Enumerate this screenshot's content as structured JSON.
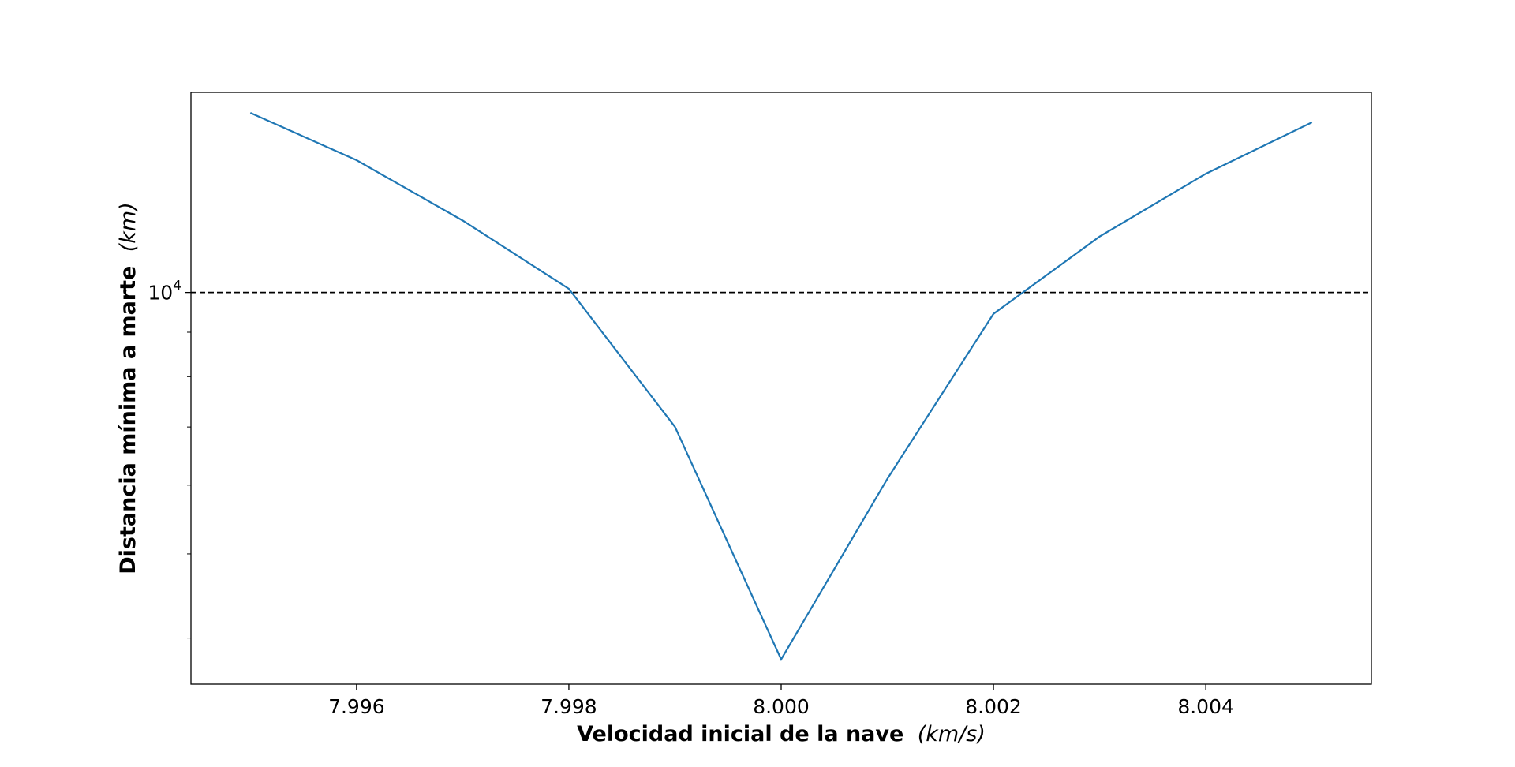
{
  "chart_data": {
    "type": "line",
    "title": "",
    "xlabel": "Velocidad inicial de la nave",
    "xlabel_unit": "(km/s)",
    "ylabel": "Distancia mínima a marte",
    "ylabel_unit": "(km)",
    "xlim": [
      7.99444,
      8.00556
    ],
    "ylim": [
      3540,
      17000
    ],
    "yscale": "log",
    "grid": false,
    "legend": "none",
    "x_ticks": [
      7.996,
      7.998,
      8.0,
      8.002,
      8.004
    ],
    "x_tick_labels": [
      "7.996",
      "7.998",
      "8.000",
      "8.002",
      "8.004"
    ],
    "y_ticks_major": [
      10000
    ],
    "y_tick_labels": [
      {
        "base": "10",
        "exp": "4"
      }
    ],
    "y_ticks_minor": [
      4000,
      5000,
      6000,
      7000,
      8000,
      9000,
      20000
    ],
    "series": [
      {
        "color": "#1f77b4",
        "x": [
          7.995,
          7.996,
          7.997,
          7.998,
          7.999,
          8.0,
          8.001,
          8.002,
          8.003,
          8.004,
          8.005
        ],
        "y": [
          16100,
          14200,
          12100,
          10100,
          7000,
          3780,
          6100,
          9450,
          11600,
          13700,
          15700
        ]
      }
    ],
    "reference_line": {
      "y": 10000,
      "style": "dashed",
      "color": "#000000"
    }
  }
}
